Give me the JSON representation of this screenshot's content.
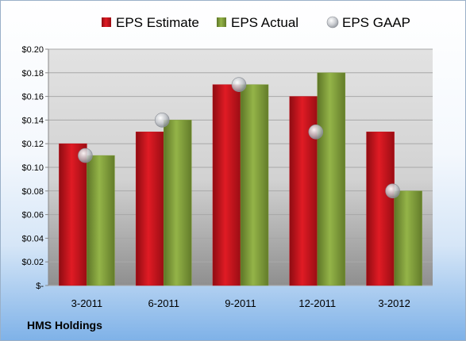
{
  "footer": {
    "company": "HMS Holdings"
  },
  "colors": {
    "estimate": "#c0111b",
    "actual": "#7e9c37",
    "gaap": "#b9bdc4"
  },
  "chart_data": {
    "type": "bar",
    "categories": [
      "3-2011",
      "6-2011",
      "9-2011",
      "12-2011",
      "3-2012"
    ],
    "series": [
      {
        "name": "EPS Estimate",
        "kind": "bar",
        "values": [
          0.12,
          0.13,
          0.17,
          0.16,
          0.13
        ]
      },
      {
        "name": "EPS Actual",
        "kind": "bar",
        "values": [
          0.11,
          0.14,
          0.17,
          0.18,
          0.08
        ]
      },
      {
        "name": "EPS GAAP",
        "kind": "marker",
        "values": [
          0.11,
          0.14,
          0.17,
          0.13,
          0.08
        ]
      }
    ],
    "y_tick_labels": [
      "$-",
      "$0.02",
      "$0.04",
      "$0.06",
      "$0.08",
      "$0.10",
      "$0.12",
      "$0.14",
      "$0.16",
      "$0.18",
      "$0.20"
    ],
    "ylim": [
      0,
      0.2
    ],
    "y_step": 0.02,
    "grid": true,
    "legend_position": "top"
  }
}
